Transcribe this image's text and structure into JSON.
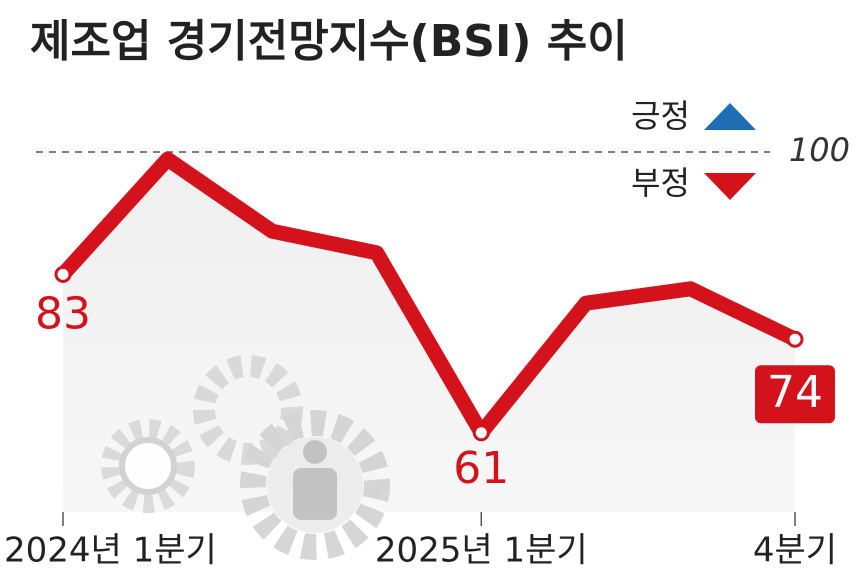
{
  "chart_data": {
    "type": "line",
    "title": "제조업 경기전망지수(BSI) 추이",
    "categories": [
      "2024년 1분기",
      null,
      null,
      null,
      "2025년 1분기",
      null,
      null,
      "4분기"
    ],
    "series": [
      {
        "name": "BSI",
        "color": "#d3121c",
        "values": [
          83,
          99,
          89,
          86,
          61,
          79,
          81,
          74
        ]
      }
    ],
    "ylim": [
      50,
      105
    ],
    "yticks": [
      100
    ],
    "legend": [
      {
        "name": "긍정",
        "color": "#1f6db3",
        "marker": "up"
      },
      {
        "name": "부정",
        "color": "#d3121c",
        "marker": "down"
      }
    ]
  }
}
